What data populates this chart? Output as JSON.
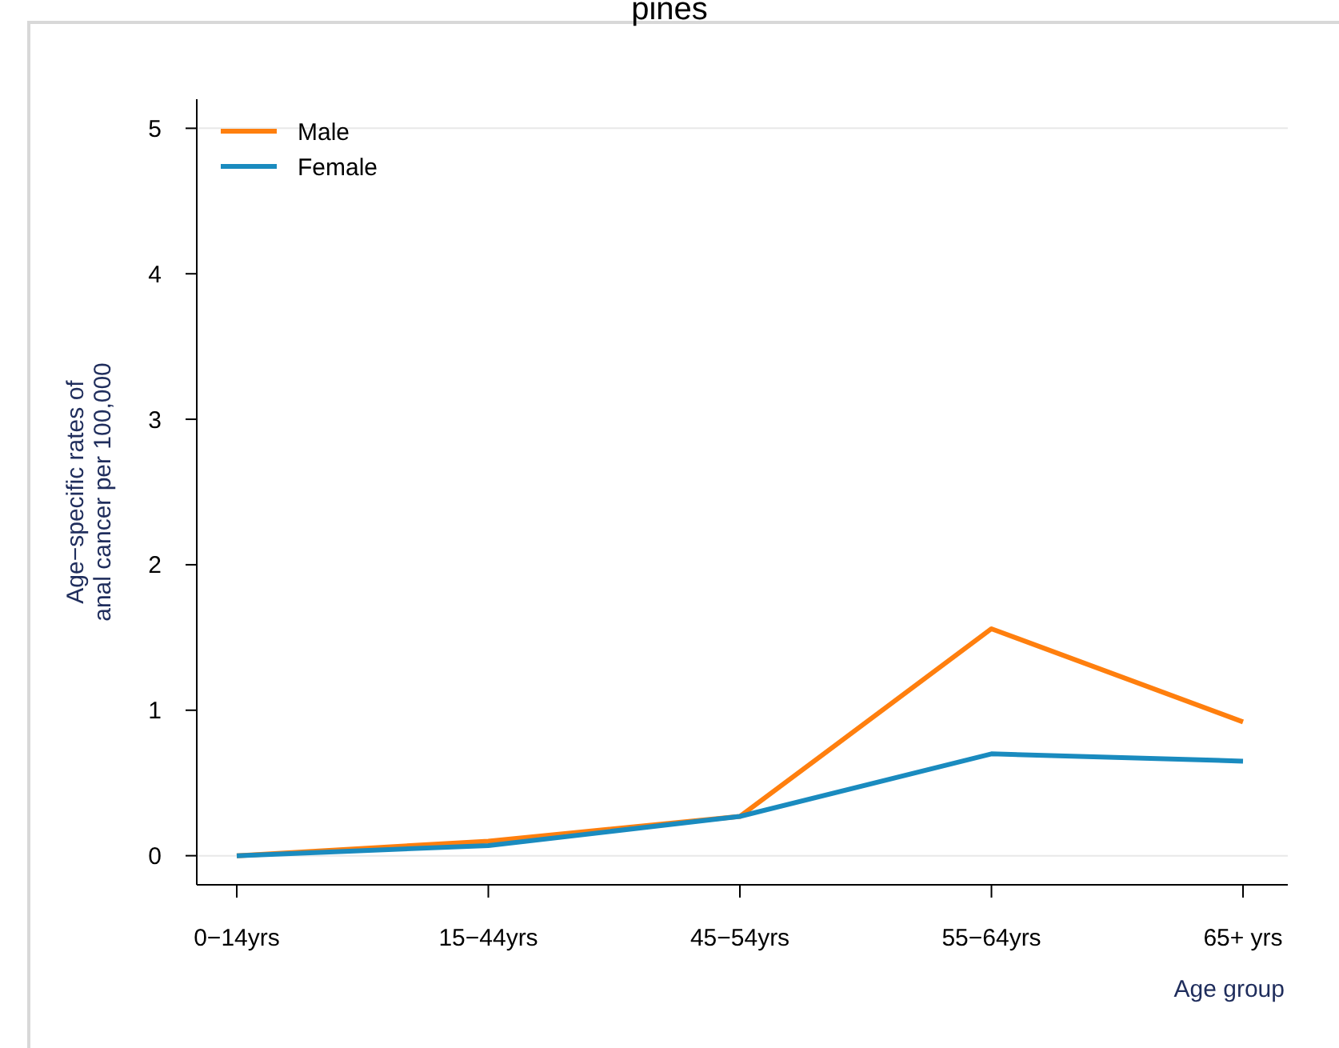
{
  "chart_data": {
    "type": "line",
    "title": "pines",
    "xlabel": "Age group",
    "ylabel": "Age−specific rates of\nanal cancer per 100,000",
    "categories": [
      "0−14yrs",
      "15−44yrs",
      "45−54yrs",
      "55−64yrs",
      "65+ yrs"
    ],
    "series": [
      {
        "name": "Male",
        "color": "#ff7f0e",
        "values": [
          0,
          0.1,
          0.27,
          1.56,
          0.92
        ]
      },
      {
        "name": "Female",
        "color": "#1a8bbf",
        "values": [
          0,
          0.07,
          0.27,
          0.7,
          0.65
        ]
      }
    ],
    "ylim": [
      -0.2,
      5.2
    ],
    "yticks": [
      0,
      1,
      2,
      3,
      4,
      5
    ],
    "ref_lines": [
      {
        "axis": "y",
        "value": 0,
        "color": "#e8e8e8"
      },
      {
        "axis": "y",
        "value": 5,
        "color": "#e8e8e8"
      }
    ],
    "legend": "top left",
    "marker": "none",
    "line_style": "solid"
  }
}
